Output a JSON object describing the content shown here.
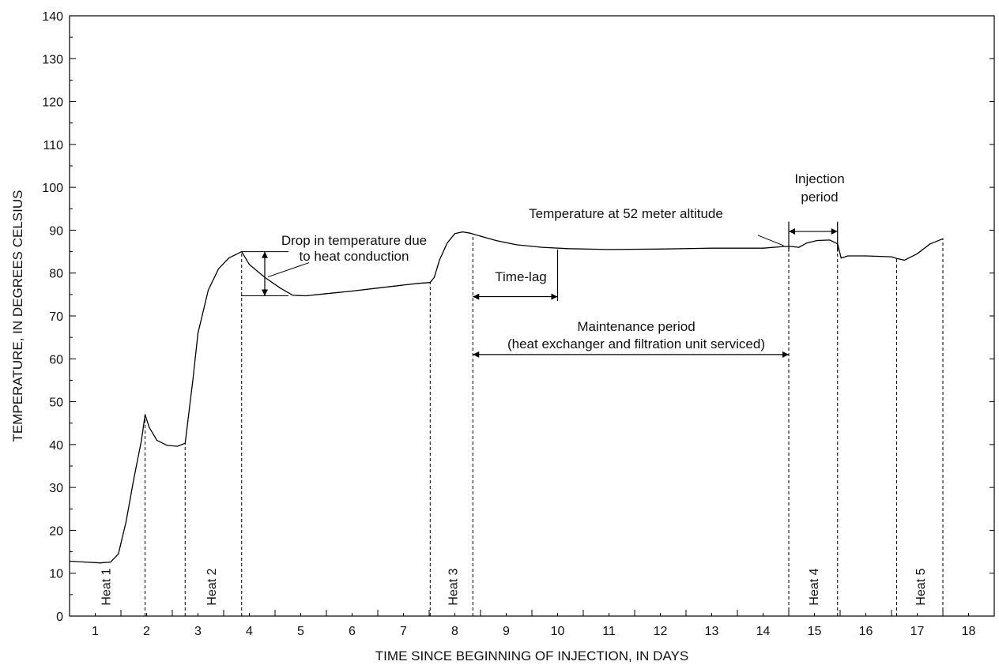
{
  "chart_data": {
    "type": "line",
    "xlabel": "TIME SINCE BEGINNING OF INJECTION, IN DAYS",
    "ylabel": "TEMPERATURE, IN DEGREES CELSIUS",
    "xlim": [
      0.5,
      18.5
    ],
    "ylim": [
      0,
      140
    ],
    "x_ticks": [
      1,
      2,
      3,
      4,
      5,
      6,
      7,
      8,
      9,
      10,
      11,
      12,
      13,
      14,
      15,
      16,
      17,
      18
    ],
    "y_ticks": [
      0,
      10,
      20,
      30,
      40,
      50,
      60,
      70,
      80,
      90,
      100,
      110,
      120,
      130,
      140
    ],
    "grid": false,
    "series": [
      {
        "name": "",
        "x": [
          0.5,
          0.8,
          1.1,
          1.3,
          1.45,
          1.6,
          1.75,
          1.9,
          1.97,
          2.05,
          2.2,
          2.4,
          2.6,
          2.75,
          2.9,
          3.0,
          3.2,
          3.4,
          3.6,
          3.85,
          4.0,
          4.3,
          4.6,
          4.85,
          5.1,
          5.5,
          6.0,
          6.5,
          7.0,
          7.3,
          7.52,
          7.6,
          7.7,
          7.85,
          8.0,
          8.15,
          8.3,
          8.5,
          8.8,
          9.2,
          9.7,
          10.2,
          11.0,
          12.0,
          13.0,
          14.0,
          14.4,
          14.55,
          14.7,
          14.85,
          15.05,
          15.3,
          15.45,
          15.52,
          15.65,
          16.0,
          16.5,
          16.6,
          16.75,
          17.0,
          17.25,
          17.5
        ],
        "y": [
          12.8,
          12.6,
          12.4,
          12.6,
          14.5,
          22,
          32,
          41,
          47,
          44,
          41,
          39.8,
          39.6,
          40.3,
          55,
          66,
          76,
          81,
          83.5,
          85,
          82,
          79,
          76.5,
          74.8,
          74.7,
          75.2,
          75.8,
          76.5,
          77.2,
          77.6,
          77.8,
          79,
          83,
          87,
          89.2,
          89.6,
          89.3,
          88.6,
          87.6,
          86.6,
          86,
          85.7,
          85.5,
          85.6,
          85.8,
          85.8,
          86.2,
          86.2,
          86,
          87,
          87.6,
          87.7,
          86.8,
          83.5,
          84,
          84,
          83.8,
          83.4,
          83,
          84.5,
          86.8,
          88
        ]
      }
    ],
    "event_times": [
      1.97,
      2.75,
      3.85,
      7.52,
      8.35,
      14.5,
      15.45,
      16.6,
      17.5
    ],
    "periods": [
      {
        "label": "Heat 1",
        "x": 1.2
      },
      {
        "label": "Heat 2",
        "x": 3.25
      },
      {
        "label": "Heat 3",
        "x": 7.95
      },
      {
        "label": "Heat 4",
        "x": 14.98
      },
      {
        "label": "Heat 5",
        "x": 17.05
      }
    ],
    "annotations": {
      "drop": "Drop in temperature due\nto heat conduction",
      "drop_bracket": {
        "x": 4.3,
        "y_top": 85,
        "y_bottom": 74.7
      },
      "time_lag": "Time-lag",
      "time_lag_span": {
        "x0": 8.35,
        "x1": 10.0,
        "y": 74.5
      },
      "time_lag_marker": {
        "x": 10.0,
        "y_top": 85.5,
        "y_bottom": 73.5
      },
      "maintenance": "Maintenance period\n(heat exchanger and filtration unit serviced)",
      "maintenance_span": {
        "x0": 8.35,
        "x1": 14.5,
        "y": 61
      },
      "injection": "Injection\nperiod",
      "injection_span": {
        "x0": 14.5,
        "x1": 15.45,
        "y": 89.7
      },
      "injection_marker": {
        "y_top": 92,
        "y_bottom": 85
      },
      "curve_label": "Temperature at 52 meter altitude",
      "curve_label_pointer": {
        "x0": 13.9,
        "y0": 88.8,
        "x1": 14.4,
        "y1": 86.4
      }
    }
  }
}
